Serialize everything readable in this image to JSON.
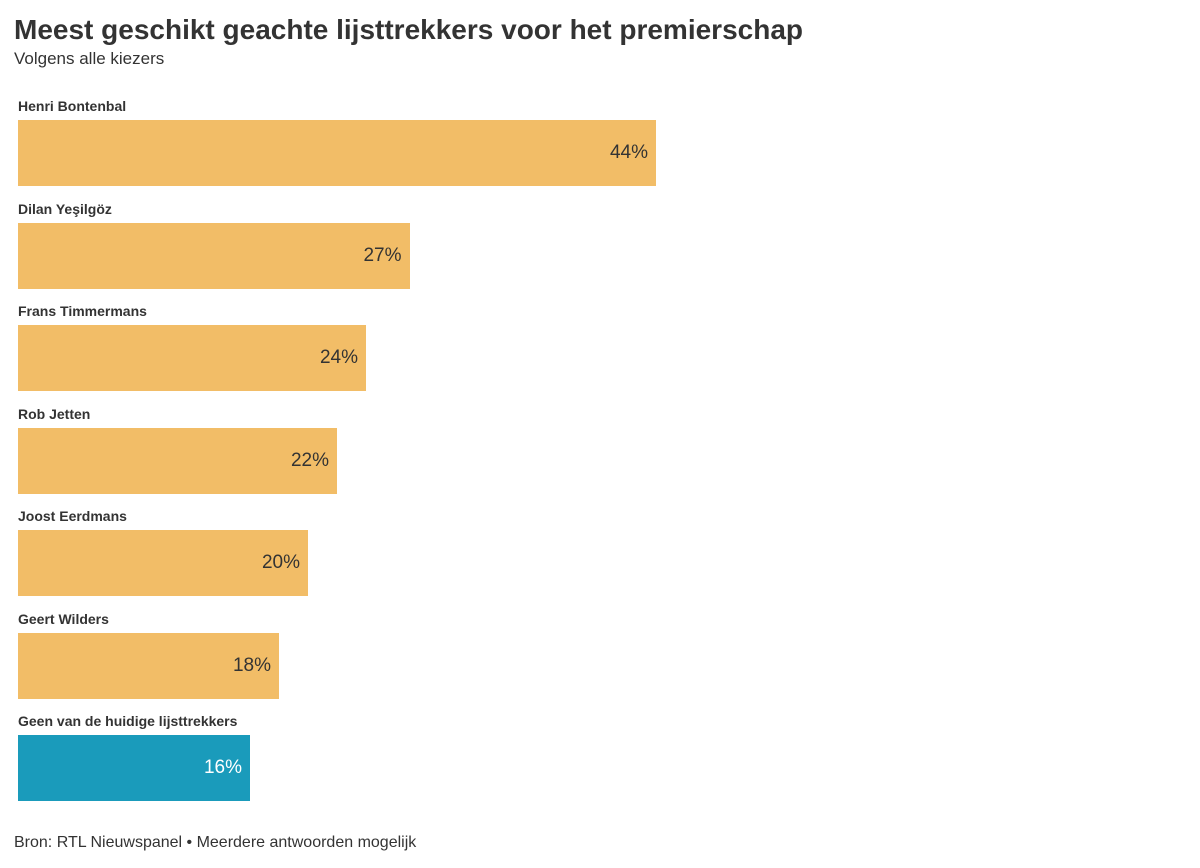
{
  "title": "Meest geschikt geachte lijsttrekkers voor het premierschap",
  "subtitle": "Volgens alle kiezers",
  "footer": "Bron: RTL Nieuwspanel • Meerdere antwoorden mogelijk",
  "colors": {
    "default_bar": "#f2bd67",
    "highlight_bar": "#1a9bbb"
  },
  "chart_data": {
    "type": "bar",
    "orientation": "horizontal",
    "categories": [
      "Henri Bontenbal",
      "Dilan Yeşilgöz",
      "Frans Timmermans",
      "Rob Jetten",
      "Joost Eerdmans",
      "Geert Wilders",
      "Geen van de huidige lijsttrekkers"
    ],
    "values": [
      44,
      27,
      24,
      22,
      20,
      18,
      16
    ],
    "value_labels": [
      "44%",
      "27%",
      "24%",
      "22%",
      "20%",
      "18%",
      "16%"
    ],
    "highlight": [
      false,
      false,
      false,
      false,
      false,
      false,
      true
    ],
    "unit": "%",
    "title": "Meest geschikt geachte lijsttrekkers voor het premierschap",
    "subtitle": "Volgens alle kiezers",
    "xlabel": "",
    "ylabel": "",
    "xlim": [
      0,
      80
    ],
    "grid": false,
    "legend": "none"
  }
}
